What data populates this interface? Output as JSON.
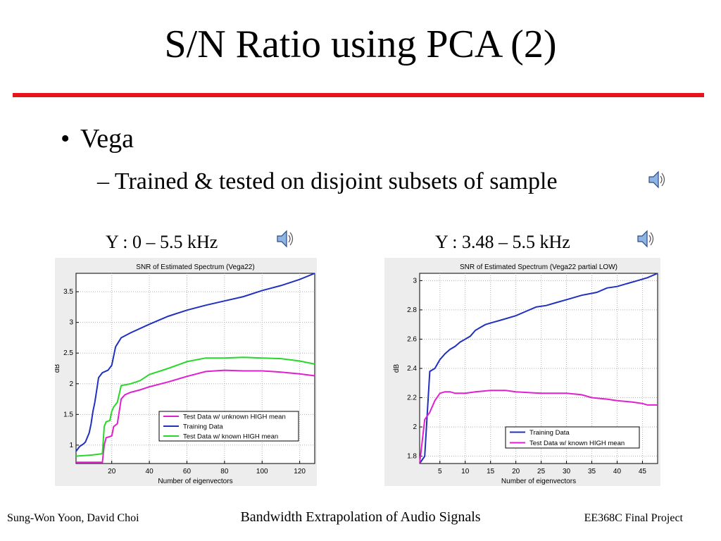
{
  "slide": {
    "title": "S/N Ratio using PCA (2)",
    "bullet": "Vega",
    "sub_bullet": "– Trained & tested on disjoint subsets of sample",
    "left_label": "Y : 0 – 5.5 kHz",
    "right_label": "Y : 3.48 – 5.5 kHz",
    "footer_left": "Sung-Won Yoon, David Choi",
    "footer_center": "Bandwidth Extrapolation of Audio Signals",
    "footer_right": "EE368C Final Project",
    "accent_color": "#e8141c",
    "speaker_icon": "speaker-icon"
  },
  "chart_data": [
    {
      "type": "line",
      "title": "SNR of Estimated Spectrum (Vega22)",
      "xlabel": "Number of eigenvectors",
      "ylabel": "dB",
      "xlim": [
        1,
        128
      ],
      "ylim": [
        0.7,
        3.8
      ],
      "xticks": [
        20,
        40,
        60,
        80,
        100,
        120
      ],
      "yticks": [
        1,
        1.5,
        2,
        2.5,
        3,
        3.5
      ],
      "grid": true,
      "legend_position": "lower-right",
      "series": [
        {
          "name": "Test Data w/ unknown HIGH mean",
          "color": "#e020d0",
          "x": [
            1,
            15,
            16,
            17,
            20,
            21,
            23,
            25,
            27,
            30,
            35,
            40,
            50,
            60,
            70,
            80,
            90,
            100,
            110,
            120,
            128
          ],
          "y": [
            0.72,
            0.72,
            1.0,
            1.12,
            1.15,
            1.3,
            1.35,
            1.75,
            1.82,
            1.86,
            1.9,
            1.95,
            2.03,
            2.12,
            2.2,
            2.22,
            2.21,
            2.21,
            2.19,
            2.16,
            2.13
          ]
        },
        {
          "name": "Training Data",
          "color": "#2030c0",
          "x": [
            1,
            3,
            5,
            6,
            8,
            9,
            10,
            11,
            12,
            13,
            15,
            18,
            20,
            21,
            22,
            23,
            25,
            30,
            40,
            50,
            60,
            70,
            80,
            90,
            100,
            110,
            120,
            128
          ],
          "y": [
            0.9,
            0.98,
            1.02,
            1.05,
            1.2,
            1.35,
            1.55,
            1.7,
            1.9,
            2.1,
            2.18,
            2.22,
            2.3,
            2.45,
            2.6,
            2.65,
            2.75,
            2.83,
            2.97,
            3.1,
            3.2,
            3.28,
            3.35,
            3.42,
            3.52,
            3.6,
            3.7,
            3.8
          ]
        },
        {
          "name": "Test Data w/ known HIGH mean",
          "color": "#28d828",
          "x": [
            1,
            10,
            15,
            16,
            17,
            19,
            20,
            21,
            23,
            25,
            30,
            35,
            40,
            50,
            60,
            70,
            80,
            90,
            100,
            110,
            120,
            128
          ],
          "y": [
            0.82,
            0.84,
            0.86,
            1.3,
            1.38,
            1.4,
            1.55,
            1.62,
            1.7,
            1.97,
            2.0,
            2.05,
            2.15,
            2.25,
            2.36,
            2.42,
            2.42,
            2.43,
            2.42,
            2.41,
            2.37,
            2.32
          ]
        }
      ]
    },
    {
      "type": "line",
      "title": "SNR of Estimated Spectrum (Vega22 partial LOW)",
      "xlabel": "Number of eigenvectors",
      "ylabel": "dB",
      "xlim": [
        1,
        48
      ],
      "ylim": [
        1.75,
        3.05
      ],
      "xticks": [
        5,
        10,
        15,
        20,
        25,
        30,
        35,
        40,
        45
      ],
      "yticks": [
        1.8,
        2,
        2.2,
        2.4,
        2.6,
        2.8,
        3
      ],
      "grid": true,
      "legend_position": "lower-right",
      "series": [
        {
          "name": "Training Data",
          "color": "#2030c0",
          "x": [
            1,
            2,
            3,
            4,
            5,
            6,
            7,
            8,
            9,
            10,
            11,
            12,
            13,
            14,
            15,
            17,
            20,
            22,
            24,
            26,
            28,
            30,
            33,
            36,
            38,
            40,
            42,
            44,
            46,
            48
          ],
          "y": [
            1.75,
            1.8,
            2.38,
            2.4,
            2.46,
            2.5,
            2.53,
            2.55,
            2.58,
            2.6,
            2.62,
            2.66,
            2.68,
            2.7,
            2.71,
            2.73,
            2.76,
            2.79,
            2.82,
            2.83,
            2.85,
            2.87,
            2.9,
            2.92,
            2.95,
            2.96,
            2.98,
            3.0,
            3.02,
            3.05
          ]
        },
        {
          "name": "Test Data w/ known HIGH mean",
          "color": "#e020d0",
          "x": [
            1,
            2,
            3,
            4,
            5,
            6,
            7,
            8,
            10,
            12,
            15,
            18,
            20,
            25,
            30,
            33,
            35,
            38,
            40,
            43,
            45,
            46,
            48
          ],
          "y": [
            1.75,
            2.05,
            2.1,
            2.18,
            2.23,
            2.24,
            2.24,
            2.23,
            2.23,
            2.24,
            2.25,
            2.25,
            2.24,
            2.23,
            2.23,
            2.22,
            2.2,
            2.19,
            2.18,
            2.17,
            2.16,
            2.15,
            2.15
          ]
        }
      ]
    }
  ]
}
